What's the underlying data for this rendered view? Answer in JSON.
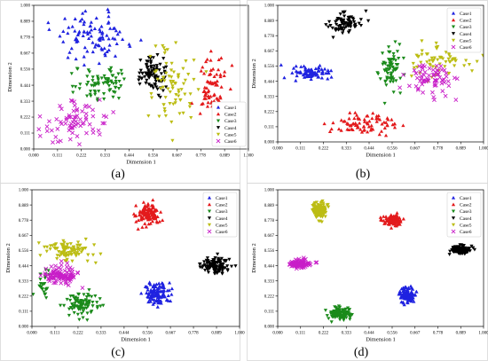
{
  "figure": {
    "tick_labels": [
      "0.000",
      "0.111",
      "0.222",
      "0.333",
      "0.444",
      "0.556",
      "0.667",
      "0.778",
      "0.889",
      "1.000"
    ],
    "xlabel": "Dimension 1",
    "ylabel": "Dimension 2",
    "legend": [
      "Case1",
      "Case2",
      "Case3",
      "Case4",
      "Case5",
      "Case6"
    ],
    "colors": {
      "Case1": "#1f22e0",
      "Case2": "#e31a1c",
      "Case3": "#1a8a1a",
      "Case4": "#000000",
      "Case5": "#bcbd14",
      "Case6": "#c81ec8"
    },
    "markers": {
      "Case1": "triangle-up",
      "Case2": "triangle-up",
      "Case3": "triangle-down",
      "Case4": "triangle-down",
      "Case5": "triangle-down",
      "Case6": "x"
    }
  },
  "chart_data": [
    {
      "panel": "(a)",
      "type": "scatter",
      "xlabel": "Dimension 1",
      "ylabel": "Dimension 2",
      "xlim": [
        0,
        1
      ],
      "ylim": [
        0,
        1
      ],
      "legend_position": "bottom-right",
      "series": [
        {
          "name": "Case1",
          "clusters": [
            {
              "x": 0.28,
              "y": 0.78,
              "sx": 0.14,
              "sy": 0.14,
              "n": 95
            }
          ]
        },
        {
          "name": "Case2",
          "clusters": [
            {
              "x": 0.83,
              "y": 0.45,
              "sx": 0.07,
              "sy": 0.2,
              "n": 75
            }
          ]
        },
        {
          "name": "Case3",
          "clusters": [
            {
              "x": 0.32,
              "y": 0.46,
              "sx": 0.1,
              "sy": 0.11,
              "n": 75
            }
          ]
        },
        {
          "name": "Case4",
          "clusters": [
            {
              "x": 0.55,
              "y": 0.52,
              "sx": 0.055,
              "sy": 0.1,
              "n": 90
            }
          ]
        },
        {
          "name": "Case5",
          "clusters": [
            {
              "x": 0.65,
              "y": 0.45,
              "sx": 0.08,
              "sy": 0.22,
              "n": 75
            }
          ]
        },
        {
          "name": "Case6",
          "clusters": [
            {
              "x": 0.2,
              "y": 0.2,
              "sx": 0.12,
              "sy": 0.12,
              "n": 75
            }
          ]
        }
      ]
    },
    {
      "panel": "(b)",
      "type": "scatter",
      "xlabel": "Dimension 1",
      "ylabel": "Dimension 2",
      "xlim": [
        0,
        1
      ],
      "ylim": [
        0,
        1
      ],
      "legend_position": "top-right",
      "series": [
        {
          "name": "Case1",
          "clusters": [
            {
              "x": 0.15,
              "y": 0.5,
              "sx": 0.08,
              "sy": 0.04,
              "n": 80
            }
          ]
        },
        {
          "name": "Case2",
          "clusters": [
            {
              "x": 0.42,
              "y": 0.13,
              "sx": 0.13,
              "sy": 0.07,
              "n": 80
            }
          ]
        },
        {
          "name": "Case3",
          "clusters": [
            {
              "x": 0.55,
              "y": 0.55,
              "sx": 0.04,
              "sy": 0.14,
              "n": 70
            }
          ]
        },
        {
          "name": "Case4",
          "clusters": [
            {
              "x": 0.33,
              "y": 0.87,
              "sx": 0.07,
              "sy": 0.07,
              "n": 75
            }
          ]
        },
        {
          "name": "Case5",
          "clusters": [
            {
              "x": 0.79,
              "y": 0.6,
              "sx": 0.12,
              "sy": 0.1,
              "n": 70
            }
          ]
        },
        {
          "name": "Case6",
          "clusters": [
            {
              "x": 0.74,
              "y": 0.45,
              "sx": 0.1,
              "sy": 0.12,
              "n": 70
            }
          ]
        }
      ]
    },
    {
      "panel": "(c)",
      "type": "scatter",
      "xlabel": "Dimension 1",
      "ylabel": "Dimension 2",
      "xlim": [
        0,
        1
      ],
      "ylim": [
        0,
        1
      ],
      "legend_position": "top-right",
      "series": [
        {
          "name": "Case1",
          "clusters": [
            {
              "x": 0.6,
              "y": 0.24,
              "sx": 0.05,
              "sy": 0.07,
              "n": 110
            }
          ]
        },
        {
          "name": "Case2",
          "clusters": [
            {
              "x": 0.56,
              "y": 0.82,
              "sx": 0.05,
              "sy": 0.07,
              "n": 110
            }
          ]
        },
        {
          "name": "Case3",
          "clusters": [
            {
              "x": 0.24,
              "y": 0.16,
              "sx": 0.07,
              "sy": 0.07,
              "n": 95
            },
            {
              "x": 0.06,
              "y": 0.32,
              "sx": 0.03,
              "sy": 0.09,
              "n": 25
            }
          ]
        },
        {
          "name": "Case4",
          "clusters": [
            {
              "x": 0.88,
              "y": 0.44,
              "sx": 0.06,
              "sy": 0.05,
              "n": 110
            }
          ]
        },
        {
          "name": "Case5",
          "clusters": [
            {
              "x": 0.18,
              "y": 0.55,
              "sx": 0.09,
              "sy": 0.06,
              "n": 100
            }
          ]
        },
        {
          "name": "Case6",
          "clusters": [
            {
              "x": 0.15,
              "y": 0.37,
              "sx": 0.07,
              "sy": 0.06,
              "n": 100
            }
          ]
        }
      ]
    },
    {
      "panel": "(d)",
      "type": "scatter",
      "xlabel": "Dimension 1",
      "ylabel": "Dimension 2",
      "xlim": [
        0,
        1
      ],
      "ylim": [
        0,
        1
      ],
      "legend_position": "top-right",
      "series": [
        {
          "name": "Case1",
          "clusters": [
            {
              "x": 0.63,
              "y": 0.23,
              "sx": 0.035,
              "sy": 0.045,
              "n": 110
            }
          ]
        },
        {
          "name": "Case2",
          "clusters": [
            {
              "x": 0.56,
              "y": 0.78,
              "sx": 0.035,
              "sy": 0.035,
              "n": 110
            }
          ]
        },
        {
          "name": "Case3",
          "clusters": [
            {
              "x": 0.31,
              "y": 0.1,
              "sx": 0.04,
              "sy": 0.035,
              "n": 110
            }
          ]
        },
        {
          "name": "Case4",
          "clusters": [
            {
              "x": 0.89,
              "y": 0.56,
              "sx": 0.04,
              "sy": 0.025,
              "n": 110
            }
          ]
        },
        {
          "name": "Case5",
          "clusters": [
            {
              "x": 0.2,
              "y": 0.85,
              "sx": 0.03,
              "sy": 0.05,
              "n": 110
            }
          ]
        },
        {
          "name": "Case6",
          "clusters": [
            {
              "x": 0.1,
              "y": 0.46,
              "sx": 0.045,
              "sy": 0.025,
              "n": 110
            }
          ]
        }
      ]
    }
  ]
}
